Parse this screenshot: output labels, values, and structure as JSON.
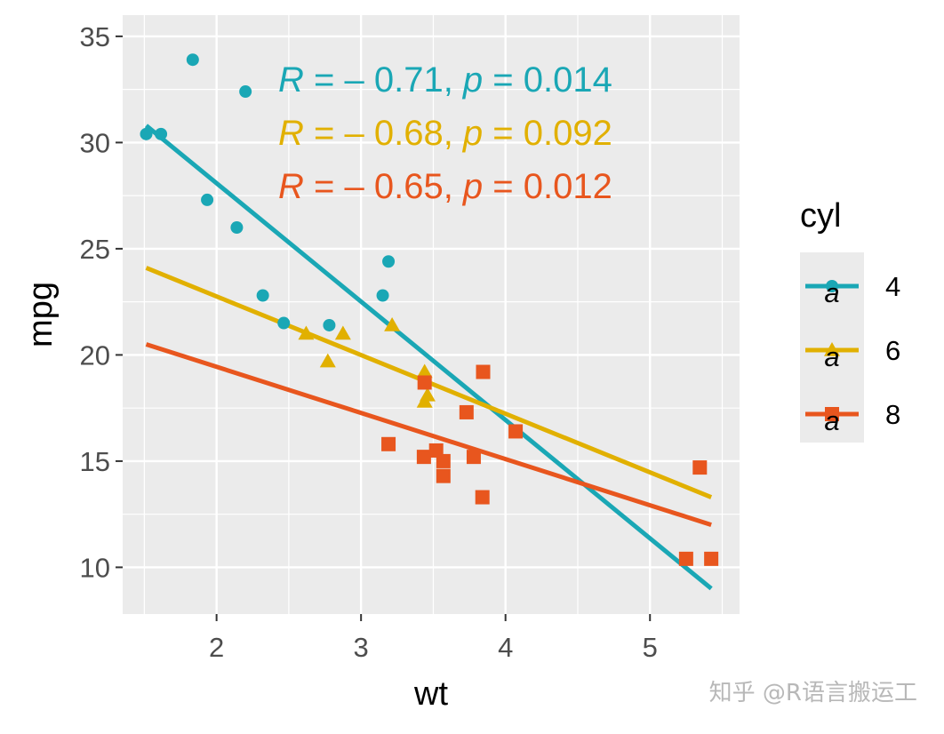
{
  "chart_data": {
    "type": "scatter",
    "title": "",
    "xlabel": "wt",
    "ylabel": "mpg",
    "xlim": [
      1.35,
      5.62
    ],
    "ylim": [
      7.8,
      36.0
    ],
    "xticks": [
      2,
      3,
      4,
      5
    ],
    "yticks": [
      10,
      15,
      20,
      25,
      30,
      35
    ],
    "grid": true,
    "legend_title": "cyl",
    "legend_position": "right",
    "series": [
      {
        "name": "4",
        "color": "#1AA7B5",
        "marker": "circle",
        "points": [
          [
            1.513,
            30.4
          ],
          [
            1.615,
            30.4
          ],
          [
            1.835,
            33.9
          ],
          [
            1.935,
            27.3
          ],
          [
            2.14,
            26.0
          ],
          [
            2.2,
            32.4
          ],
          [
            2.32,
            22.8
          ],
          [
            2.465,
            21.5
          ],
          [
            2.78,
            21.4
          ],
          [
            3.15,
            22.8
          ],
          [
            3.19,
            24.4
          ]
        ],
        "fit": {
          "x": [
            1.513,
            5.424
          ],
          "y": [
            30.8,
            9.0
          ]
        },
        "stat": {
          "r_label": "R",
          "r_value": " = – 0.71, ",
          "p_label": "p",
          "p_value": " = 0.014"
        }
      },
      {
        "name": "6",
        "color": "#E1B000",
        "marker": "triangle",
        "points": [
          [
            2.62,
            21.0
          ],
          [
            2.875,
            21.0
          ],
          [
            2.77,
            19.7
          ],
          [
            3.215,
            21.4
          ],
          [
            3.44,
            19.2
          ],
          [
            3.46,
            18.1
          ],
          [
            3.44,
            17.8
          ]
        ],
        "fit": {
          "x": [
            1.513,
            5.424
          ],
          "y": [
            24.1,
            13.3
          ]
        },
        "stat": {
          "r_label": "R",
          "r_value": " = – 0.68, ",
          "p_label": "p",
          "p_value": " = 0.092"
        }
      },
      {
        "name": "8",
        "color": "#E8561E",
        "marker": "square",
        "points": [
          [
            3.44,
            18.7
          ],
          [
            3.57,
            14.3
          ],
          [
            3.19,
            15.8
          ],
          [
            3.73,
            17.3
          ],
          [
            3.78,
            15.2
          ],
          [
            3.52,
            15.5
          ],
          [
            3.435,
            15.2
          ],
          [
            3.57,
            15.0
          ],
          [
            3.84,
            13.3
          ],
          [
            3.845,
            19.2
          ],
          [
            4.07,
            16.4
          ],
          [
            5.25,
            10.4
          ],
          [
            5.424,
            10.4
          ],
          [
            5.345,
            14.7
          ]
        ],
        "fit": {
          "x": [
            1.513,
            5.424
          ],
          "y": [
            20.5,
            12.0
          ]
        },
        "stat": {
          "r_label": "R",
          "r_value": " = – 0.65, ",
          "p_label": "p",
          "p_value": " = 0.012"
        }
      }
    ]
  },
  "legend": {
    "key_glyph": "a"
  },
  "watermark": {
    "text": "知乎 @R语言搬运工"
  }
}
